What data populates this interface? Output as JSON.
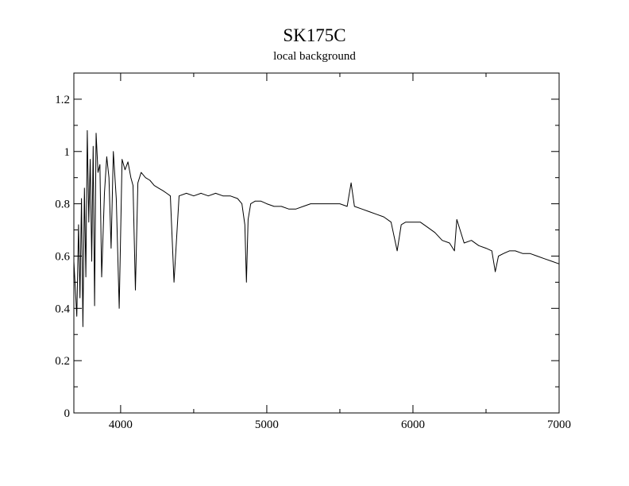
{
  "chart_data": {
    "type": "line",
    "title": "SK175C",
    "subtitle": "local background",
    "xlabel": "",
    "ylabel": "",
    "xlim": [
      3680,
      7000
    ],
    "ylim": [
      0,
      1.3
    ],
    "x_ticks": [
      4000,
      5000,
      6000,
      7000
    ],
    "x_minor_step": 500,
    "y_ticks": [
      0,
      0.2,
      0.4,
      0.6,
      0.8,
      1,
      1.2
    ],
    "y_tick_labels": [
      "0",
      "0.2",
      "0.4",
      "0.6",
      "0.8",
      "1",
      "1.2"
    ],
    "y_minor_step": 0.1,
    "grid": false,
    "series": [
      {
        "x": [
          3680,
          3700,
          3712,
          3722,
          3732,
          3742,
          3752,
          3762,
          3772,
          3782,
          3792,
          3802,
          3812,
          3822,
          3832,
          3845,
          3858,
          3870,
          3889,
          3905,
          3920,
          3935,
          3950,
          3970,
          3990,
          4010,
          4030,
          4050,
          4070,
          4085,
          4101,
          4118,
          4140,
          4170,
          4200,
          4230,
          4260,
          4290,
          4315,
          4340,
          4365,
          4400,
          4450,
          4500,
          4550,
          4600,
          4650,
          4700,
          4750,
          4800,
          4830,
          4850,
          4861,
          4872,
          4890,
          4920,
          4960,
          5000,
          5050,
          5100,
          5150,
          5200,
          5250,
          5300,
          5350,
          5400,
          5450,
          5500,
          5550,
          5577,
          5600,
          5650,
          5700,
          5750,
          5800,
          5850,
          5892,
          5920,
          5950,
          6000,
          6050,
          6100,
          6150,
          6200,
          6250,
          6284,
          6300,
          6350,
          6400,
          6450,
          6500,
          6540,
          6563,
          6585,
          6620,
          6660,
          6700,
          6750,
          6800,
          6850,
          6900,
          6950,
          7000
        ],
        "values": [
          0.58,
          0.37,
          0.72,
          0.44,
          0.82,
          0.33,
          0.86,
          0.52,
          1.08,
          0.73,
          0.97,
          0.58,
          1.02,
          0.41,
          1.07,
          0.92,
          0.95,
          0.52,
          0.84,
          0.98,
          0.9,
          0.63,
          1.0,
          0.82,
          0.4,
          0.97,
          0.93,
          0.96,
          0.9,
          0.87,
          0.47,
          0.88,
          0.92,
          0.9,
          0.89,
          0.87,
          0.86,
          0.85,
          0.84,
          0.83,
          0.5,
          0.83,
          0.84,
          0.83,
          0.84,
          0.83,
          0.84,
          0.83,
          0.83,
          0.82,
          0.8,
          0.72,
          0.5,
          0.74,
          0.8,
          0.81,
          0.81,
          0.8,
          0.79,
          0.79,
          0.78,
          0.78,
          0.79,
          0.8,
          0.8,
          0.8,
          0.8,
          0.8,
          0.79,
          0.88,
          0.79,
          0.78,
          0.77,
          0.76,
          0.75,
          0.73,
          0.62,
          0.72,
          0.73,
          0.73,
          0.73,
          0.71,
          0.69,
          0.66,
          0.65,
          0.62,
          0.74,
          0.65,
          0.66,
          0.64,
          0.63,
          0.62,
          0.54,
          0.6,
          0.61,
          0.62,
          0.62,
          0.61,
          0.61,
          0.6,
          0.59,
          0.58,
          0.57
        ]
      }
    ]
  }
}
